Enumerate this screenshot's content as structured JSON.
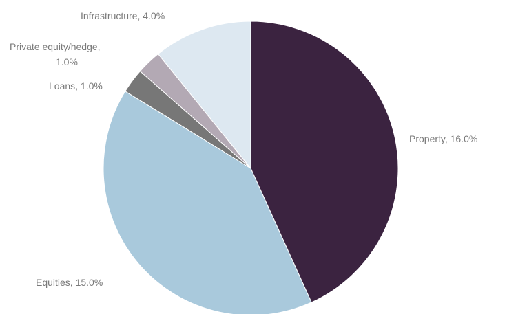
{
  "chart_data": {
    "type": "pie",
    "slices": [
      {
        "name": "Property",
        "value": 16.0,
        "label": "Property, 16.0%",
        "color": "#3b2340"
      },
      {
        "name": "Equities",
        "value": 15.0,
        "label": "Equities, 15.0%",
        "color": "#a9c9dc"
      },
      {
        "name": "Loans",
        "value": 1.0,
        "label": "Loans, 1.0%",
        "color": "#777777"
      },
      {
        "name": "Private equity/hedge",
        "value": 1.0,
        "label_lines": [
          "Private equity/hedge,",
          "1.0%"
        ],
        "color": "#b3a9b4"
      },
      {
        "name": "Infrastructure",
        "value": 4.0,
        "label": "Infrastructure, 4.0%",
        "color": "#dde8f1"
      }
    ],
    "start": "top",
    "direction": "clockwise"
  },
  "colors": {
    "label_text": "#7a7a7a",
    "slice_border": "#ffffff",
    "background": "#ffffff"
  }
}
